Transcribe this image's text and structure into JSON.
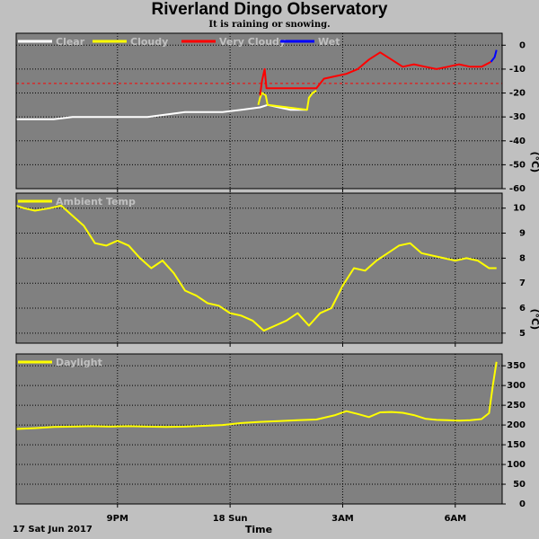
{
  "header": {
    "title": "Riverland Dingo Observatory",
    "subtitle": "It is raining or snowing."
  },
  "footer": {
    "date_label": "17 Sat Jun 2017",
    "time_label": "Time"
  },
  "colors": {
    "background": "#c0c0c0",
    "panel": "#808080",
    "grid": "#000000",
    "threshold": "#ff0000",
    "clear": "#ffffff",
    "cloudy": "#ffff00",
    "very_cloudy": "#ff0000",
    "wet": "#0000ff",
    "legend_text": "#c0c0c0"
  },
  "chart_data": [
    {
      "type": "line",
      "title": "",
      "xlabel": "Time",
      "ylabel": "(°C)",
      "x_ticks": [
        "9PM",
        "18 Sun",
        "3AM",
        "6AM"
      ],
      "x_tick_hours": [
        21,
        24,
        27,
        30
      ],
      "xlim": [
        18.3,
        31.25
      ],
      "ylim": [
        -60,
        5
      ],
      "y_ticks": [
        0,
        -10,
        -20,
        -30,
        -40,
        -50,
        -60
      ],
      "threshold": -16,
      "legend": [
        {
          "name": "Clear",
          "color": "#ffffff"
        },
        {
          "name": "Cloudy",
          "color": "#ffff00"
        },
        {
          "name": "Very Cloudy",
          "color": "#ff0000"
        },
        {
          "name": "Wet",
          "color": "#0000ff"
        }
      ],
      "series": [
        {
          "name": "Clear",
          "color": "#ffffff",
          "x": [
            18.3,
            18.8,
            19.3,
            19.8,
            20.3,
            20.8,
            21.3,
            21.8,
            22.3,
            22.8,
            23.3,
            23.8,
            24.3,
            24.8,
            25.0,
            25.3,
            25.6,
            25.9,
            26.05
          ],
          "y": [
            -31,
            -31,
            -31,
            -30,
            -30,
            -30,
            -30,
            -30,
            -29,
            -28,
            -28,
            -28,
            -27,
            -26,
            -25,
            -26,
            -27,
            -27,
            -27
          ]
        },
        {
          "name": "Cloudy",
          "color": "#ffff00",
          "x": [
            24.75,
            24.8,
            24.85,
            24.95,
            25.0,
            26.05,
            26.1,
            26.2,
            26.3
          ],
          "y": [
            -25,
            -22,
            -20,
            -21,
            -25,
            -27,
            -22,
            -20,
            -19
          ]
        },
        {
          "name": "Very Cloudy",
          "color": "#ff0000",
          "x": [
            24.8,
            24.85,
            24.92,
            24.97,
            26.3,
            26.5,
            26.8,
            27.1,
            27.4,
            27.7,
            28.0,
            28.3,
            28.6,
            28.9,
            29.2,
            29.5,
            29.8,
            30.1,
            30.4,
            30.7,
            30.95
          ],
          "y": [
            -21,
            -15,
            -10,
            -18,
            -18,
            -14,
            -13,
            -12,
            -10,
            -6,
            -3,
            -6,
            -9,
            -8,
            -9,
            -10,
            -9,
            -8,
            -9,
            -9,
            -7
          ]
        },
        {
          "name": "Wet",
          "color": "#0000ff",
          "x": [
            30.95,
            31.05,
            31.1
          ],
          "y": [
            -7,
            -5,
            -2
          ]
        }
      ]
    },
    {
      "type": "line",
      "title": "",
      "xlabel": "Time",
      "ylabel": "(°C)",
      "x_ticks": [
        "9PM",
        "18 Sun",
        "3AM",
        "6AM"
      ],
      "xlim": [
        18.3,
        31.25
      ],
      "ylim": [
        4.6,
        10.6
      ],
      "y_ticks": [
        5,
        6,
        7,
        8,
        9,
        10
      ],
      "legend": [
        {
          "name": "Ambient Temp",
          "color": "#ffff00"
        }
      ],
      "series": [
        {
          "name": "Ambient Temp",
          "color": "#ffff00",
          "x": [
            18.3,
            18.5,
            18.8,
            19.2,
            19.5,
            19.8,
            20.1,
            20.4,
            20.7,
            21.0,
            21.3,
            21.6,
            21.9,
            22.2,
            22.5,
            22.8,
            23.1,
            23.4,
            23.7,
            24.0,
            24.3,
            24.6,
            24.9,
            25.2,
            25.5,
            25.8,
            26.1,
            26.4,
            26.7,
            27.0,
            27.3,
            27.6,
            27.9,
            28.2,
            28.5,
            28.8,
            29.1,
            29.4,
            29.7,
            30.0,
            30.3,
            30.6,
            30.9,
            31.1
          ],
          "y": [
            10.1,
            10.0,
            9.9,
            10.0,
            10.1,
            9.7,
            9.3,
            8.6,
            8.5,
            8.7,
            8.5,
            8.0,
            7.6,
            7.9,
            7.4,
            6.7,
            6.5,
            6.2,
            6.1,
            5.8,
            5.7,
            5.5,
            5.1,
            5.3,
            5.5,
            5.8,
            5.3,
            5.8,
            6.0,
            6.9,
            7.6,
            7.5,
            7.9,
            8.2,
            8.5,
            8.6,
            8.2,
            8.1,
            8.0,
            7.9,
            8.0,
            7.9,
            7.6,
            7.6
          ]
        }
      ]
    },
    {
      "type": "line",
      "title": "",
      "xlabel": "Time",
      "ylabel": "",
      "x_ticks": [
        "9PM",
        "18 Sun",
        "3AM",
        "6AM"
      ],
      "xlim": [
        18.3,
        31.25
      ],
      "ylim": [
        0,
        380
      ],
      "y_ticks": [
        0,
        50,
        100,
        150,
        200,
        250,
        300,
        350
      ],
      "legend": [
        {
          "name": "Daylight",
          "color": "#ffff00"
        }
      ],
      "series": [
        {
          "name": "Daylight",
          "color": "#ffff00",
          "x": [
            18.3,
            18.8,
            19.3,
            19.8,
            20.3,
            20.8,
            21.3,
            21.8,
            22.3,
            22.8,
            23.3,
            23.8,
            24.3,
            24.8,
            25.3,
            25.8,
            26.3,
            26.8,
            27.1,
            27.4,
            27.7,
            28.0,
            28.3,
            28.6,
            28.9,
            29.2,
            29.5,
            29.8,
            30.1,
            30.4,
            30.7,
            30.9,
            31.0,
            31.1
          ],
          "y": [
            190,
            192,
            195,
            196,
            197,
            196,
            197,
            196,
            195,
            196,
            198,
            200,
            205,
            208,
            210,
            212,
            214,
            225,
            235,
            228,
            220,
            232,
            233,
            231,
            225,
            216,
            213,
            212,
            211,
            212,
            215,
            230,
            300,
            360
          ]
        }
      ]
    }
  ]
}
